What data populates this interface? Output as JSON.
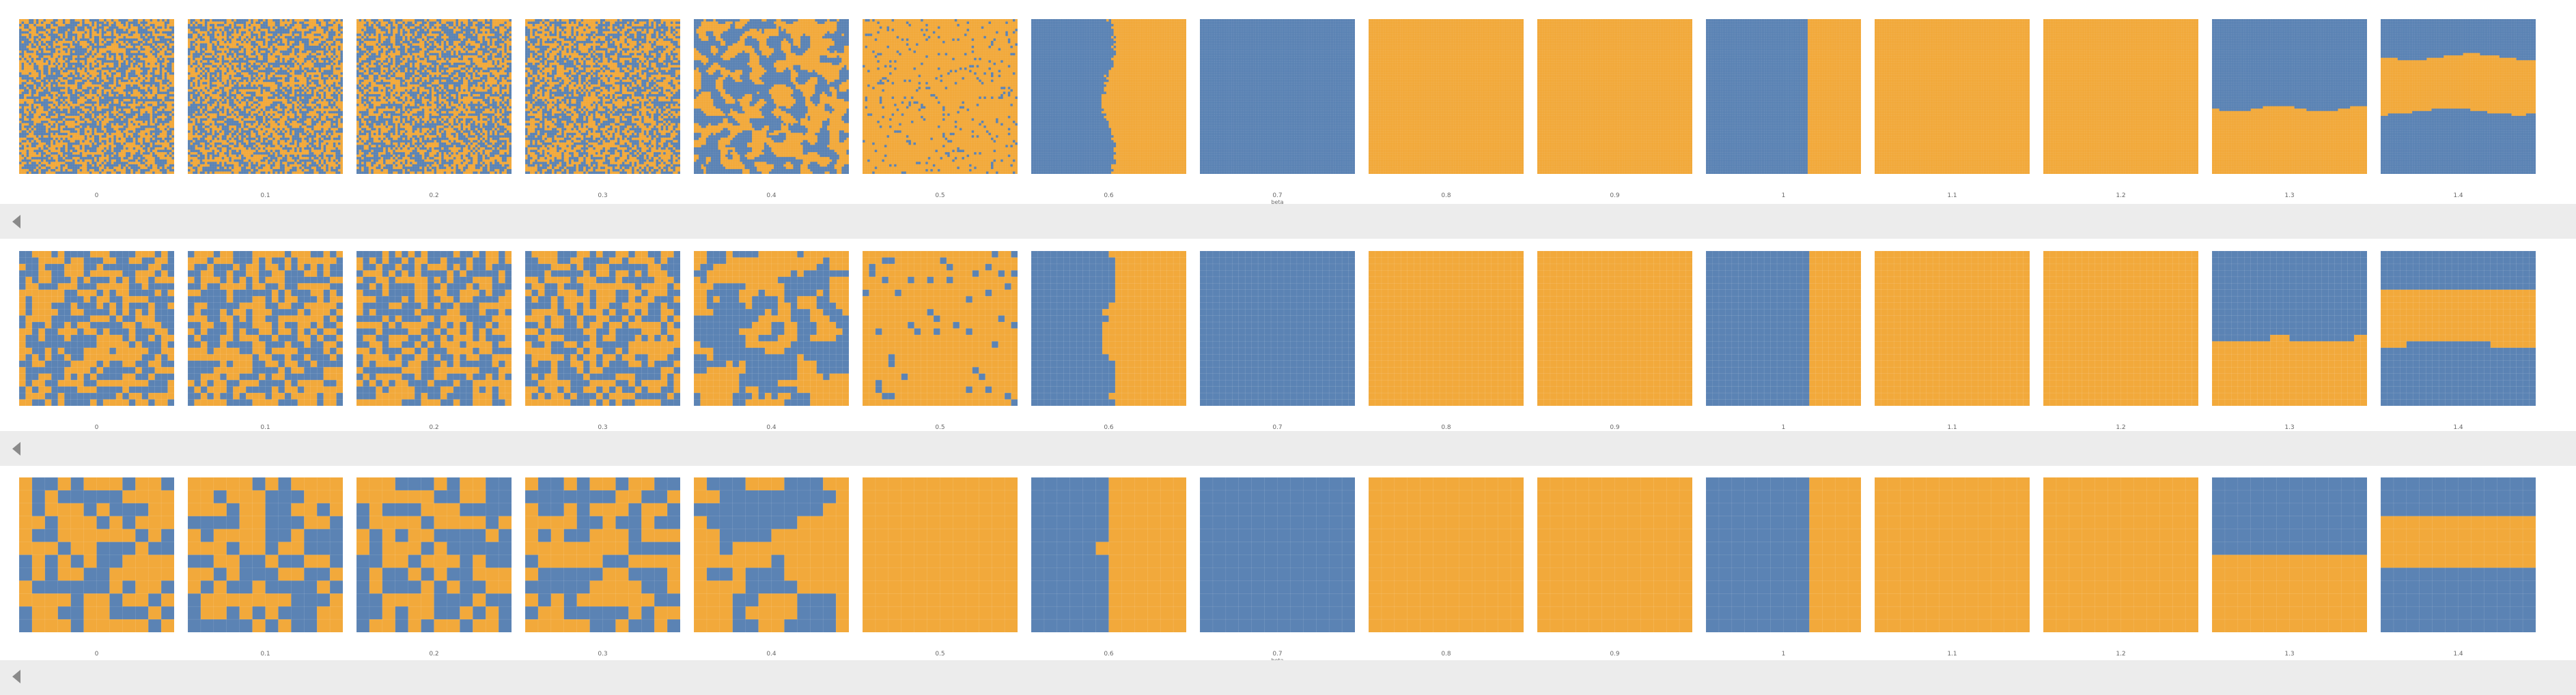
{
  "chart_data": [
    {
      "type": "heatmap",
      "grid_size": 64,
      "xlabel": "beta",
      "panel_labels": [
        "0",
        "0.1",
        "0.2",
        "0.3",
        "0.4",
        "0.5",
        "0.6",
        "0.7",
        "0.8",
        "0.9",
        "1",
        "1.1",
        "1.2",
        "1.3",
        "1.4"
      ],
      "value_colors": {
        "1": "#f2a93b",
        "-1": "#5b83b4"
      },
      "panel_states": [
        "random",
        "random",
        "random",
        "random",
        "clustered",
        "mostly-positive",
        "vertical-split-left-negative",
        "all-negative",
        "all-positive",
        "all-positive",
        "vertical-split-right-positive",
        "all-positive",
        "all-positive",
        "lower-band-positive",
        "middle-band-positive"
      ]
    },
    {
      "type": "heatmap",
      "grid_size": 24,
      "xlabel": "beta",
      "panel_labels": [
        "0",
        "0.1",
        "0.2",
        "0.3",
        "0.4",
        "0.5",
        "0.6",
        "0.7",
        "0.8",
        "0.9",
        "1",
        "1.1",
        "1.2",
        "1.3",
        "1.4"
      ],
      "value_colors": {
        "1": "#f2a93b",
        "-1": "#5b83b4"
      },
      "panel_states": [
        "random",
        "random",
        "random",
        "random",
        "clustered",
        "mostly-positive",
        "vertical-split-left-negative",
        "all-negative",
        "all-positive",
        "all-positive",
        "vertical-split-right-positive",
        "all-positive",
        "all-positive",
        "lower-band-positive",
        "middle-band-positive"
      ]
    },
    {
      "type": "heatmap",
      "grid_size": 12,
      "xlabel": "beta",
      "panel_labels": [
        "0",
        "0.1",
        "0.2",
        "0.3",
        "0.4",
        "0.5",
        "0.6",
        "0.7",
        "0.8",
        "0.9",
        "1",
        "1.1",
        "1.2",
        "1.3",
        "1.4"
      ],
      "value_colors": {
        "1": "#f2a93b",
        "-1": "#5b83b4"
      },
      "panel_states": [
        "random",
        "random",
        "random",
        "random",
        "clustered",
        "all-positive",
        "vertical-split-left-negative",
        "all-negative",
        "all-positive",
        "all-positive",
        "vertical-split-right-positive",
        "all-positive",
        "all-positive",
        "lower-half-positive",
        "middle-band-positive"
      ]
    }
  ]
}
